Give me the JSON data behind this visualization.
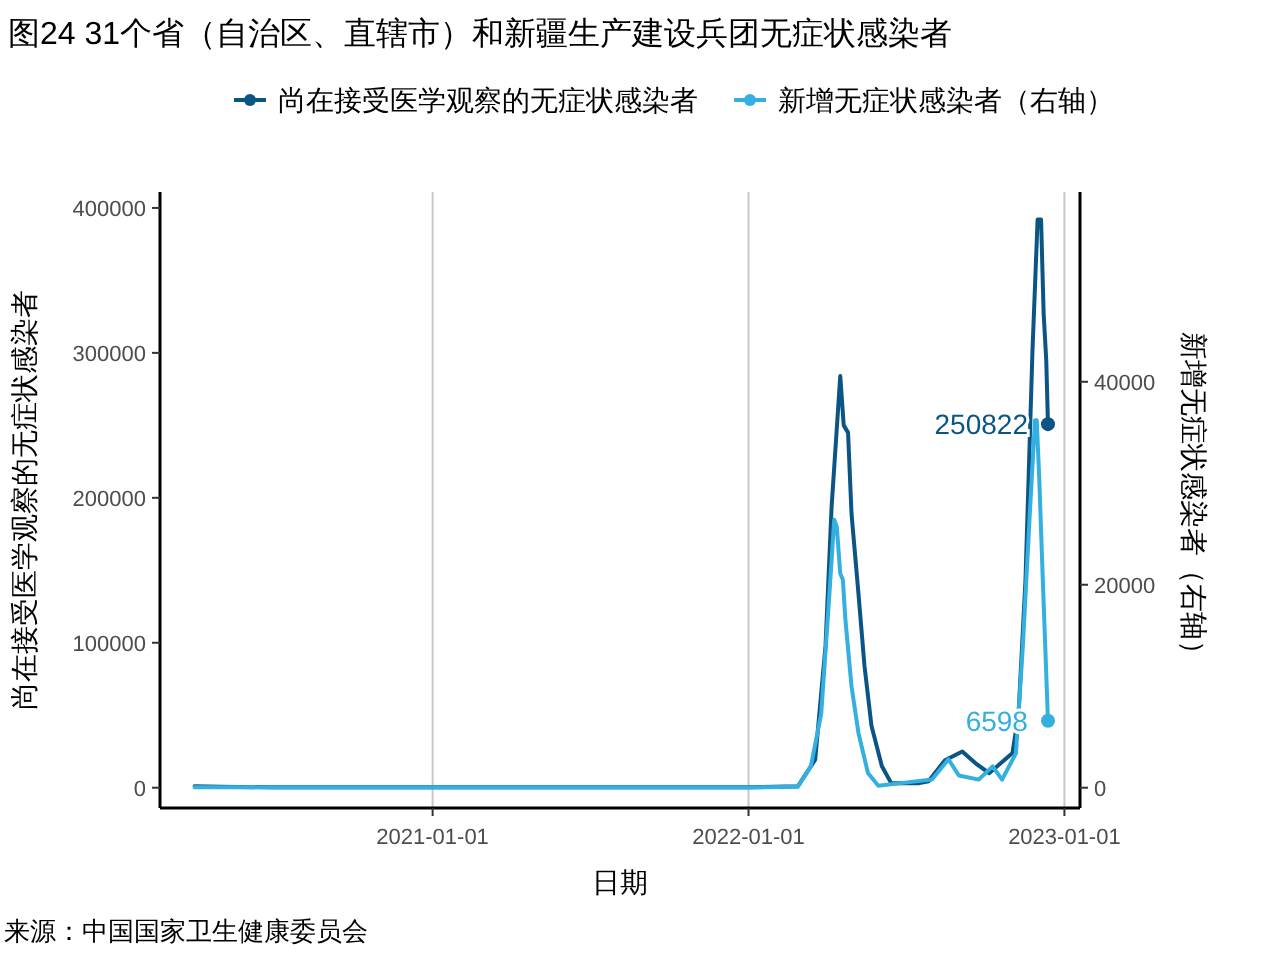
{
  "chart_data": {
    "type": "line",
    "title": "图24 31个省（自治区、直辖市）和新疆生产建设兵团无症状感染者",
    "xlabel": "日期",
    "ylabel": "尚在接受医学观察的无症状感染者",
    "y2label": "新增无症状感染者（右轴）",
    "annotations": [
      "来源：中国国家卫生健康委员会"
    ],
    "xlim": [
      "2020-02-21",
      "2023-01-19"
    ],
    "xticks": [
      "2021-01-01",
      "2022-01-01",
      "2023-01-01"
    ],
    "ylim": [
      -14000,
      411000
    ],
    "yticks": [
      0,
      100000,
      200000,
      300000,
      400000
    ],
    "y2lim": [
      -2000,
      58700
    ],
    "y2ticks": [
      0,
      20000,
      40000
    ],
    "grid": "x",
    "legend": "top",
    "series": [
      {
        "name": "尚在接受医学观察的无症状感染者",
        "color": "#0b5584",
        "x": [
          "2020-04-01",
          "2020-05-01",
          "2020-07-01",
          "2021-01-01",
          "2021-07-01",
          "2022-01-01",
          "2022-02-27",
          "2022-03-19",
          "2022-03-31",
          "2022-04-07",
          "2022-04-17",
          "2022-04-21",
          "2022-04-26",
          "2022-04-30",
          "2022-05-08",
          "2022-05-15",
          "2022-05-23",
          "2022-06-04",
          "2022-06-15",
          "2022-07-16",
          "2022-07-28",
          "2022-08-16",
          "2022-09-05",
          "2022-09-20",
          "2022-10-06",
          "2022-10-17",
          "2022-11-02",
          "2022-11-09",
          "2022-11-17",
          "2022-11-25",
          "2022-12-01",
          "2022-12-05",
          "2022-12-08",
          "2022-12-11",
          "2022-12-13"
        ],
        "values": [
          1000,
          600,
          300,
          300,
          300,
          300,
          1000,
          19300,
          98000,
          194000,
          284000,
          250000,
          245000,
          189000,
          134000,
          84000,
          43000,
          15000,
          3000,
          3000,
          4500,
          19000,
          25000,
          17000,
          10000,
          15600,
          24000,
          51000,
          143000,
          300000,
          392000,
          392000,
          327000,
          295000,
          250822
        ],
        "value_labels": [
          null,
          null,
          null,
          null,
          null,
          null,
          null,
          null,
          null,
          null,
          null,
          null,
          null,
          null,
          null,
          null,
          null,
          null,
          null,
          null,
          null,
          null,
          null,
          null,
          null,
          null,
          null,
          null,
          null,
          null,
          null,
          null,
          null,
          null,
          "250822"
        ]
      },
      {
        "name": "新增无症状感染者（右轴）",
        "color": "#33afe0",
        "axis": "y2",
        "x": [
          "2020-04-01",
          "2020-07-01",
          "2021-01-01",
          "2021-07-01",
          "2022-01-01",
          "2022-02-27",
          "2022-03-14",
          "2022-03-26",
          "2022-04-03",
          "2022-04-10",
          "2022-04-13",
          "2022-04-17",
          "2022-04-20",
          "2022-04-23",
          "2022-04-30",
          "2022-05-08",
          "2022-05-19",
          "2022-05-31",
          "2022-07-01",
          "2022-08-01",
          "2022-08-20",
          "2022-09-01",
          "2022-09-24",
          "2022-10-10",
          "2022-10-21",
          "2022-11-06",
          "2022-11-14",
          "2022-11-22",
          "2022-11-28",
          "2022-11-30",
          "2022-12-03",
          "2022-12-07",
          "2022-12-13"
        ],
        "values": [
          50,
          30,
          20,
          20,
          30,
          100,
          2100,
          7300,
          17200,
          26400,
          25700,
          21100,
          20500,
          16500,
          10000,
          5400,
          1450,
          200,
          500,
          800,
          2800,
          1200,
          800,
          2100,
          800,
          3400,
          14000,
          27000,
          36200,
          36200,
          30300,
          20500,
          6598
        ],
        "value_labels": [
          null,
          null,
          null,
          null,
          null,
          null,
          null,
          null,
          null,
          null,
          null,
          null,
          null,
          null,
          null,
          null,
          null,
          null,
          null,
          null,
          null,
          null,
          null,
          null,
          null,
          null,
          null,
          null,
          null,
          null,
          null,
          null,
          "6598"
        ]
      }
    ]
  }
}
